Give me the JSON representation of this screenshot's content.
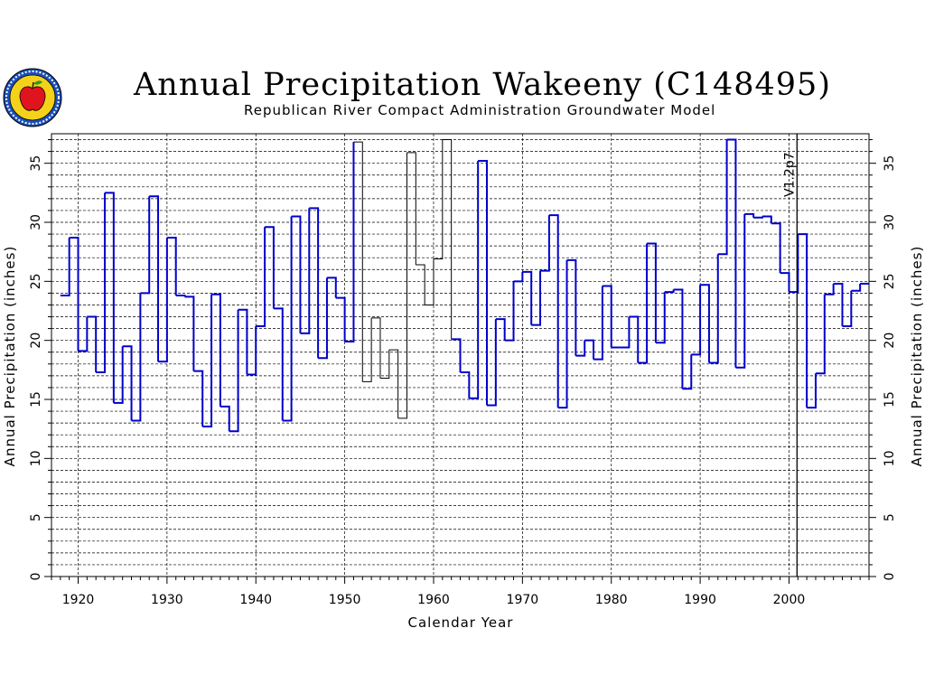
{
  "header": {
    "title": "Annual Precipitation Wakeeny (C148495)",
    "subtitle": "Republican River Compact Administration Groundwater Model",
    "logo_icon": "apple-seal-icon"
  },
  "chart_data": {
    "type": "line",
    "style": "step",
    "xlabel": "Calendar Year",
    "ylabel": "Annual Precipitation (inches)",
    "ylabel_right": "Annual Precipitation (inches)",
    "xlim": [
      1917,
      2009
    ],
    "ylim": [
      0,
      37.5
    ],
    "x_ticks": [
      1920,
      1930,
      1940,
      1950,
      1960,
      1970,
      1980,
      1990,
      2000
    ],
    "y_ticks": [
      0,
      5,
      10,
      15,
      20,
      25,
      30,
      35
    ],
    "grid": true,
    "annotation": {
      "x": 2001,
      "label": "V1.2p7"
    },
    "colors": {
      "observed": "#0000cc",
      "estimated": "#000000"
    },
    "series": [
      {
        "x": [
          1918,
          1919,
          1920,
          1921,
          1922,
          1923,
          1924,
          1925,
          1926,
          1927,
          1928,
          1929,
          1930,
          1931,
          1932,
          1933,
          1934,
          1935,
          1936,
          1937,
          1938,
          1939,
          1940,
          1941,
          1942,
          1943,
          1944,
          1945,
          1946,
          1947,
          1948,
          1949,
          1950,
          1951,
          1952,
          1953,
          1954,
          1955,
          1956,
          1957,
          1958,
          1959,
          1960,
          1961,
          1962,
          1963,
          1964,
          1965,
          1966,
          1967,
          1968,
          1969,
          1970,
          1971,
          1972,
          1973,
          1974,
          1975,
          1976,
          1977,
          1978,
          1979,
          1980,
          1981,
          1982,
          1983,
          1984,
          1985,
          1986,
          1987,
          1988,
          1989,
          1990,
          1991,
          1992,
          1993,
          1994,
          1995,
          1996,
          1997,
          1998,
          1999,
          2000,
          2001,
          2002,
          2003,
          2004,
          2005,
          2006,
          2007,
          2008
        ],
        "values": [
          23.8,
          28.7,
          19.1,
          22.0,
          17.3,
          32.5,
          14.7,
          19.5,
          13.2,
          24.0,
          32.2,
          18.2,
          28.7,
          23.8,
          23.7,
          17.4,
          12.7,
          23.9,
          14.4,
          12.3,
          22.6,
          17.1,
          21.2,
          29.6,
          22.7,
          13.2,
          30.5,
          20.6,
          31.2,
          18.5,
          25.3,
          23.6,
          19.9,
          36.8,
          16.5,
          21.9,
          16.8,
          19.2,
          13.4,
          35.9,
          26.4,
          23.0,
          26.9,
          37.0,
          20.1,
          17.3,
          15.1,
          35.2,
          14.5,
          21.8,
          20.0,
          25.0,
          25.8,
          21.3,
          25.9,
          30.6,
          14.3,
          26.8,
          18.7,
          20.0,
          18.4,
          24.6,
          19.4,
          19.4,
          22.0,
          18.1,
          28.2,
          19.8,
          24.1,
          24.3,
          15.9,
          18.8,
          24.7,
          18.1,
          27.3,
          37.0,
          17.7,
          30.7,
          30.4,
          30.5,
          29.9,
          25.7,
          24.1,
          29.0,
          14.3,
          17.2,
          23.9,
          24.8,
          21.2,
          24.2,
          24.8
        ],
        "estimated": [
          false,
          false,
          false,
          false,
          false,
          false,
          false,
          false,
          false,
          false,
          false,
          false,
          false,
          false,
          false,
          false,
          false,
          false,
          false,
          false,
          false,
          false,
          false,
          false,
          false,
          false,
          false,
          false,
          false,
          false,
          false,
          false,
          false,
          true,
          true,
          true,
          true,
          true,
          true,
          true,
          true,
          true,
          true,
          true,
          false,
          false,
          false,
          false,
          false,
          false,
          false,
          false,
          false,
          false,
          false,
          false,
          false,
          false,
          false,
          false,
          false,
          false,
          false,
          false,
          false,
          false,
          false,
          false,
          false,
          false,
          false,
          false,
          false,
          false,
          false,
          false,
          false,
          false,
          false,
          false,
          false,
          false,
          false,
          false,
          false,
          false,
          false,
          false,
          false,
          false,
          false
        ]
      }
    ]
  }
}
